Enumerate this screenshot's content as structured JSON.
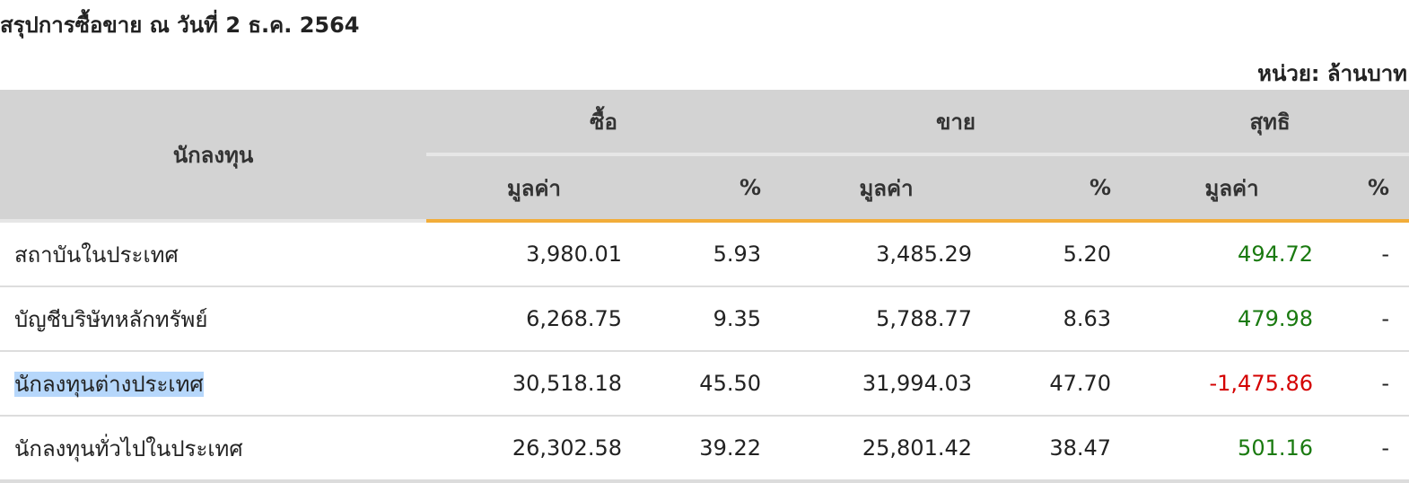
{
  "title": "สรุปการซื้อขาย ณ วันที่ 2 ธ.ค. 2564",
  "unit_label": "หน่วย: ล้านบาท",
  "headers": {
    "investor": "นักลงทุน",
    "buy": "ซื้อ",
    "sell": "ขาย",
    "net": "สุทธิ",
    "value": "มูลค่า",
    "percent": "%"
  },
  "colors": {
    "header_bg": "#d3d3d3",
    "accent_underline": "#f2ad3a",
    "net_positive": "#1a7a10",
    "net_negative": "#d40000",
    "selection_highlight": "#b6d7fb"
  },
  "rows": [
    {
      "name": "สถาบันในประเทศ",
      "buy_value": "3,980.01",
      "buy_pct": "5.93",
      "sell_value": "3,485.29",
      "sell_pct": "5.20",
      "net_value": "494.72",
      "net_pct": "-"
    },
    {
      "name": "บัญชีบริษัทหลักทรัพย์",
      "buy_value": "6,268.75",
      "buy_pct": "9.35",
      "sell_value": "5,788.77",
      "sell_pct": "8.63",
      "net_value": "479.98",
      "net_pct": "-"
    },
    {
      "name": "นักลงทุนต่างประเทศ",
      "buy_value": "30,518.18",
      "buy_pct": "45.50",
      "sell_value": "31,994.03",
      "sell_pct": "47.70",
      "net_value": "-1,475.86",
      "net_pct": "-"
    },
    {
      "name": "นักลงทุนทั่วไปในประเทศ",
      "buy_value": "26,302.58",
      "buy_pct": "39.22",
      "sell_value": "25,801.42",
      "sell_pct": "38.47",
      "net_value": "501.16",
      "net_pct": "-"
    }
  ]
}
